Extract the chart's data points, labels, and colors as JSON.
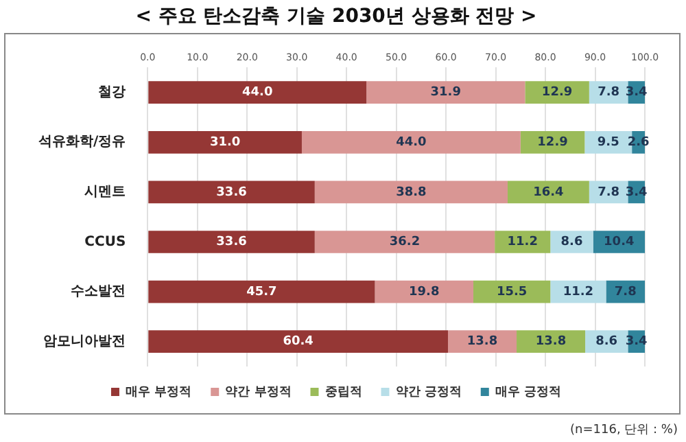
{
  "chart_data": {
    "type": "bar",
    "orientation": "horizontal",
    "stacked": true,
    "title": "< 주요 탄소감축 기술 2030년 상용화 전망 >",
    "categories": [
      "철강",
      "석유화학/정유",
      "시멘트",
      "CCUS",
      "수소발전",
      "암모니아발전"
    ],
    "series": [
      {
        "name": "매우 부정적",
        "color": "#953735",
        "values": [
          44.0,
          31.0,
          33.6,
          33.6,
          45.7,
          60.4
        ],
        "value_labels": [
          "44.0",
          "31.0",
          "33.6",
          "33.6",
          "45.7",
          "60.4"
        ]
      },
      {
        "name": "약간 부정적",
        "color": "#d99694",
        "values": [
          31.9,
          44.0,
          38.8,
          36.2,
          19.8,
          13.8
        ],
        "value_labels": [
          "31.9",
          "44.0",
          "38.8",
          "36.2",
          "19.8",
          "13.8"
        ]
      },
      {
        "name": "중립적",
        "color": "#9bbb59",
        "values": [
          12.9,
          12.9,
          16.4,
          11.2,
          15.5,
          13.8
        ],
        "value_labels": [
          "12.9",
          "12.9",
          "16.4",
          "11.2",
          "15.5",
          "13.8"
        ]
      },
      {
        "name": "약간 긍정적",
        "color": "#b7dee8",
        "values": [
          7.8,
          9.5,
          7.8,
          8.6,
          11.2,
          8.6
        ],
        "value_labels": [
          "7.8",
          "9.5",
          "7.8",
          "8.6",
          "11.2",
          "8.6"
        ]
      },
      {
        "name": "매우 긍정적",
        "color": "#31859c",
        "values": [
          3.4,
          2.6,
          3.4,
          10.4,
          7.8,
          3.4
        ],
        "value_labels": [
          "3.4",
          "2.6",
          "3.4",
          "10.4",
          "7.8",
          "3.4"
        ]
      }
    ],
    "xlim": [
      0,
      100
    ],
    "xticks": [
      {
        "value": 0,
        "label": "0.0"
      },
      {
        "value": 10,
        "label": "10.0"
      },
      {
        "value": 20,
        "label": "20.0"
      },
      {
        "value": 30,
        "label": "30.0"
      },
      {
        "value": 40,
        "label": "40.0"
      },
      {
        "value": 50,
        "label": "50.0"
      },
      {
        "value": 60,
        "label": "60.0"
      },
      {
        "value": 70,
        "label": "70.0"
      },
      {
        "value": 80,
        "label": "80.0"
      },
      {
        "value": 90,
        "label": "90.0"
      },
      {
        "value": 100,
        "label": "100.0"
      }
    ],
    "grid": "x",
    "legend": "bottom",
    "annotations": [
      "(n=116, 단위 : %)"
    ]
  }
}
